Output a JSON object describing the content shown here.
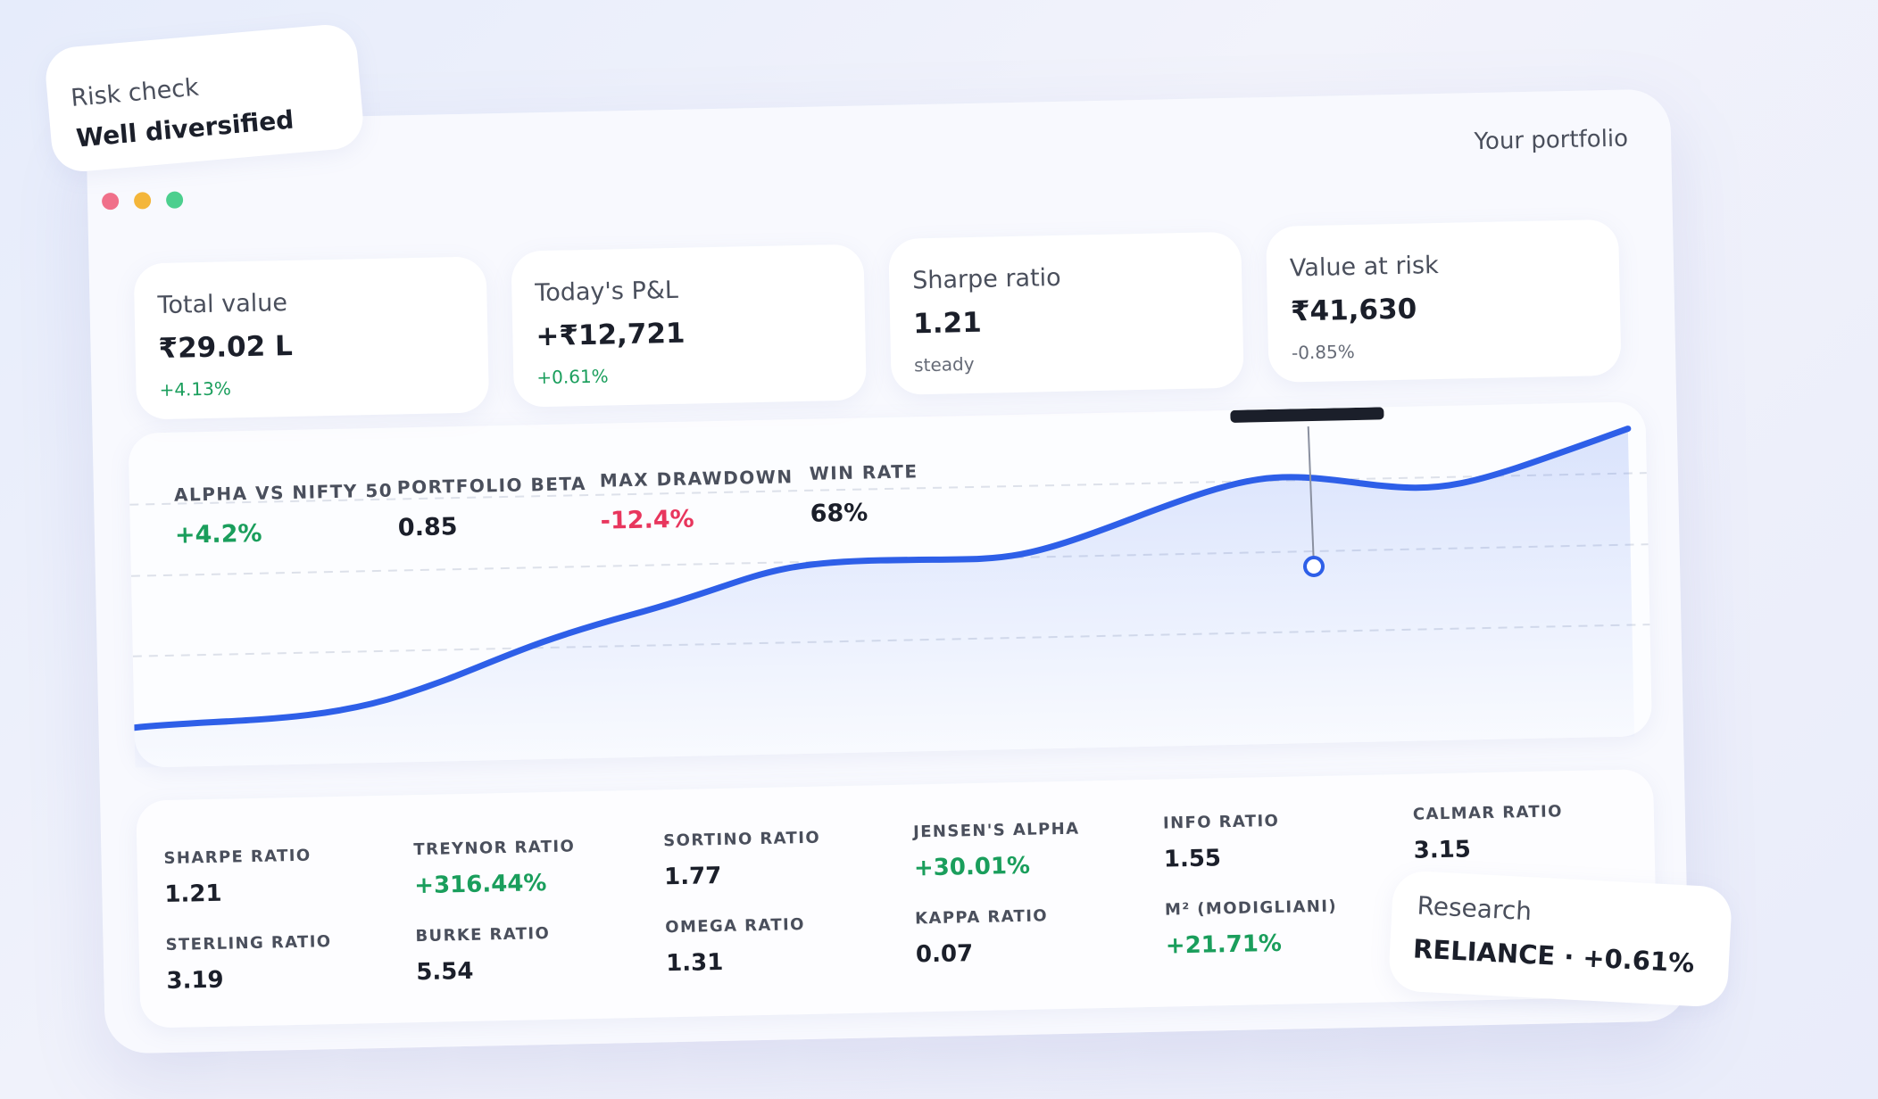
{
  "risk_check": {
    "title": "Risk check",
    "status": "Well diversified"
  },
  "header": {
    "title": "Your portfolio"
  },
  "stats": [
    {
      "label": "Total value",
      "value": "₹29.02 L",
      "change": "+4.13%"
    },
    {
      "label": "Today's P&L",
      "value": "+₹12,721",
      "change": "+0.61%"
    },
    {
      "label": "Sharpe ratio",
      "value": "1.21",
      "change": "steady"
    },
    {
      "label": "Value at risk",
      "value": "₹41,630",
      "change": "-0.85%"
    }
  ],
  "chart_metrics": [
    {
      "label": "ALPHA VS NIFTY 50",
      "value": "+4.2%"
    },
    {
      "label": "PORTFOLIO BETA",
      "value": "0.85"
    },
    {
      "label": "MAX DRAWDOWN",
      "value": "-12.4%"
    },
    {
      "label": "WIN RATE",
      "value": "68%"
    }
  ],
  "ratios": [
    {
      "label": "SHARPE RATIO",
      "value": "1.21"
    },
    {
      "label": "TREYNOR RATIO",
      "value": "+316.44%"
    },
    {
      "label": "SORTINO RATIO",
      "value": "1.77"
    },
    {
      "label": "JENSEN'S ALPHA",
      "value": "+30.01%"
    },
    {
      "label": "INFO RATIO",
      "value": "1.55"
    },
    {
      "label": "CALMAR RATIO",
      "value": "3.15"
    },
    {
      "label": "STERLING RATIO",
      "value": "3.19"
    },
    {
      "label": "BURKE RATIO",
      "value": "5.54"
    },
    {
      "label": "OMEGA RATIO",
      "value": "1.31"
    },
    {
      "label": "KAPPA RATIO",
      "value": "0.07"
    },
    {
      "label": "M² (MODIGLIANI)",
      "value": "+21.71%"
    }
  ],
  "research": {
    "title": "Research",
    "ticker": "RELIANCE · +0.61%"
  }
}
